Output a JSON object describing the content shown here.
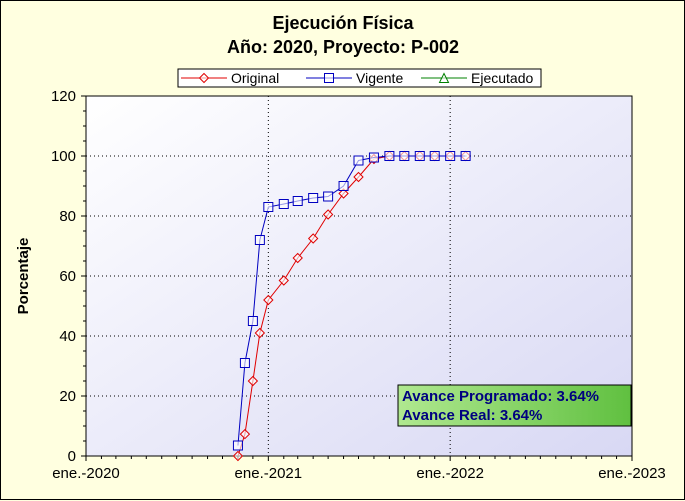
{
  "chart_data": {
    "type": "line",
    "title": "Ejecución Física",
    "subtitle": "Año: 2020, Proyecto: P-002",
    "xlabel": "",
    "ylabel": "Porcentaje",
    "x_ticks": [
      "ene.-2020",
      "ene.-2021",
      "ene.-2022",
      "ene.-2023"
    ],
    "y_ticks": [
      "0",
      "20",
      "40",
      "60",
      "80",
      "100",
      "120"
    ],
    "xlim": [
      "2020-01-01",
      "2023-01-01"
    ],
    "ylim": [
      0,
      120
    ],
    "grid": true,
    "legend_position": "top",
    "series": [
      {
        "name": "Original",
        "color": "#e00000",
        "marker": "diamond",
        "x": [
          "2020-11-01",
          "2020-11-15",
          "2020-12-01",
          "2020-12-15",
          "2021-01-01",
          "2021-02-01",
          "2021-03-01",
          "2021-04-01",
          "2021-05-01",
          "2021-06-01",
          "2021-07-01",
          "2021-08-01",
          "2021-09-01",
          "2021-10-01",
          "2021-11-01",
          "2021-12-01",
          "2022-01-01",
          "2022-02-01"
        ],
        "y": [
          0,
          7.3,
          25,
          41,
          52,
          58.5,
          66,
          72.5,
          80.5,
          87.5,
          93,
          99,
          100,
          100,
          100,
          100,
          100,
          100
        ]
      },
      {
        "name": "Vigente",
        "color": "#0000c0",
        "marker": "square",
        "x": [
          "2020-11-01",
          "2020-11-15",
          "2020-12-01",
          "2020-12-15",
          "2021-01-01",
          "2021-02-01",
          "2021-03-01",
          "2021-04-01",
          "2021-05-01",
          "2021-06-01",
          "2021-07-01",
          "2021-08-01",
          "2021-09-01",
          "2021-10-01",
          "2021-11-01",
          "2021-12-01",
          "2022-01-01",
          "2022-02-01"
        ],
        "y": [
          3.5,
          31,
          45,
          72,
          83,
          84,
          85,
          86,
          86.5,
          90,
          98.5,
          99.5,
          100,
          100,
          100,
          100,
          100,
          100
        ]
      },
      {
        "name": "Ejecutado",
        "color": "#008000",
        "marker": "triangle",
        "x": [],
        "y": []
      }
    ],
    "annotation": {
      "lines": [
        "Avance Programado: 3.64%",
        "Avance Real: 3.64%"
      ],
      "position": "bottom-right"
    }
  }
}
